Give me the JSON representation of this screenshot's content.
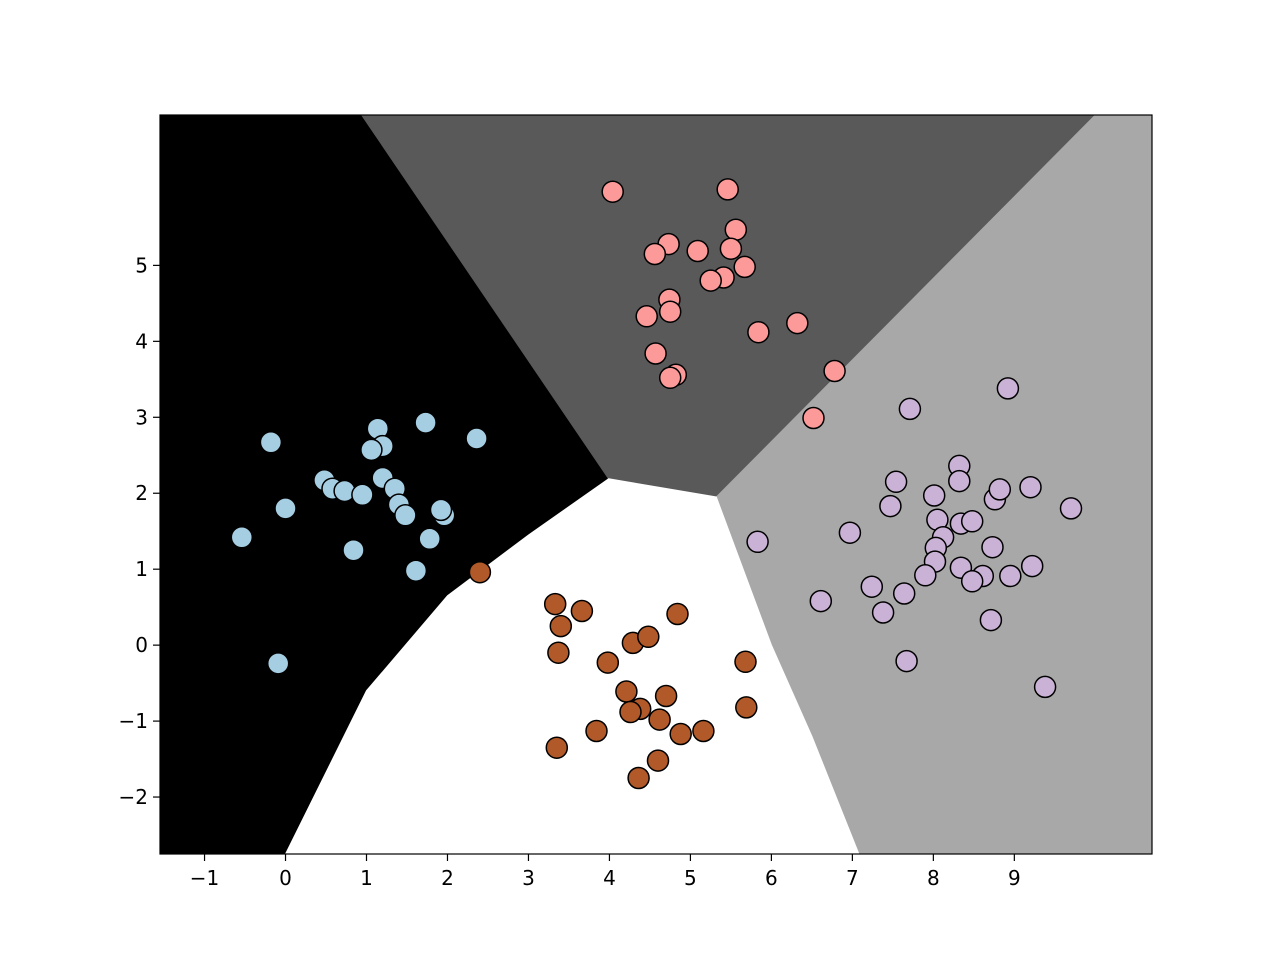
{
  "chart_data": {
    "type": "scatter",
    "title": "",
    "xlabel": "",
    "ylabel": "",
    "xlim": [
      -1.55,
      10.7
    ],
    "ylim": [
      -2.75,
      6.98
    ],
    "x_ticks": [
      -1,
      0,
      1,
      2,
      3,
      4,
      5,
      6,
      7,
      8,
      9
    ],
    "y_ticks": [
      -2,
      -1,
      0,
      1,
      2,
      3,
      4,
      5
    ],
    "x_tick_labels": [
      "−1",
      "0",
      "1",
      "2",
      "3",
      "4",
      "5",
      "6",
      "7",
      "8",
      "9"
    ],
    "y_tick_labels": [
      "−2",
      "−1",
      "0",
      "1",
      "2",
      "3",
      "4",
      "5"
    ],
    "grid": false,
    "legend": "none",
    "regions": [
      {
        "color": "#000000",
        "polygon": [
          [
            -1.55,
            6.98
          ],
          [
            0.94,
            6.98
          ],
          [
            3.99,
            2.19
          ],
          [
            3.0,
            1.45
          ],
          [
            2.0,
            0.65
          ],
          [
            1.0,
            -0.6
          ],
          [
            0.0,
            -2.75
          ],
          [
            -1.55,
            -2.75
          ]
        ]
      },
      {
        "color": "#595959",
        "polygon": [
          [
            0.94,
            6.98
          ],
          [
            10.0,
            6.98
          ],
          [
            5.32,
            1.95
          ],
          [
            3.99,
            2.19
          ]
        ]
      },
      {
        "color": "#a8a8a8",
        "polygon": [
          [
            10.0,
            6.98
          ],
          [
            10.7,
            6.98
          ],
          [
            10.7,
            -2.75
          ],
          [
            7.08,
            -2.75
          ],
          [
            6.5,
            -1.2
          ],
          [
            6.0,
            0.0
          ],
          [
            5.32,
            1.95
          ]
        ]
      },
      {
        "color": "#ffffff",
        "polygon": [
          [
            3.99,
            2.19
          ],
          [
            5.32,
            1.95
          ],
          [
            6.0,
            0.0
          ],
          [
            6.5,
            -1.2
          ],
          [
            7.08,
            -2.75
          ],
          [
            0.0,
            -2.75
          ],
          [
            1.0,
            -0.6
          ],
          [
            2.0,
            0.65
          ],
          [
            3.0,
            1.45
          ]
        ]
      }
    ],
    "series": [
      {
        "color": "#a6cee3",
        "points": [
          [
            -0.18,
            2.67
          ],
          [
            1.14,
            2.85
          ],
          [
            1.73,
            2.93
          ],
          [
            2.36,
            2.72
          ],
          [
            1.2,
            2.62
          ],
          [
            1.06,
            2.57
          ],
          [
            0.48,
            2.17
          ],
          [
            0.58,
            2.06
          ],
          [
            0.73,
            2.03
          ],
          [
            0.95,
            1.98
          ],
          [
            1.2,
            2.2
          ],
          [
            1.35,
            2.06
          ],
          [
            1.4,
            1.85
          ],
          [
            1.48,
            1.71
          ],
          [
            1.96,
            1.71
          ],
          [
            1.92,
            1.78
          ],
          [
            0.0,
            1.8
          ],
          [
            -0.54,
            1.42
          ],
          [
            0.84,
            1.25
          ],
          [
            1.78,
            1.4
          ],
          [
            1.61,
            0.98
          ],
          [
            -0.09,
            -0.24
          ]
        ]
      },
      {
        "color": "#fb9a99",
        "points": [
          [
            4.04,
            5.97
          ],
          [
            5.46,
            6.0
          ],
          [
            5.56,
            5.47
          ],
          [
            4.73,
            5.28
          ],
          [
            5.09,
            5.19
          ],
          [
            4.56,
            5.15
          ],
          [
            5.5,
            5.22
          ],
          [
            5.67,
            4.98
          ],
          [
            5.41,
            4.84
          ],
          [
            5.25,
            4.8
          ],
          [
            4.74,
            4.55
          ],
          [
            4.75,
            4.39
          ],
          [
            4.46,
            4.33
          ],
          [
            5.84,
            4.12
          ],
          [
            6.32,
            4.24
          ],
          [
            4.57,
            3.84
          ],
          [
            4.82,
            3.56
          ],
          [
            4.75,
            3.52
          ],
          [
            6.78,
            3.61
          ],
          [
            6.52,
            2.99
          ]
        ]
      },
      {
        "color": "#cab2d6",
        "points": [
          [
            8.92,
            3.38
          ],
          [
            7.71,
            3.11
          ],
          [
            7.54,
            2.15
          ],
          [
            8.32,
            2.36
          ],
          [
            8.32,
            2.16
          ],
          [
            7.47,
            1.83
          ],
          [
            8.01,
            1.97
          ],
          [
            8.76,
            1.92
          ],
          [
            8.82,
            2.05
          ],
          [
            9.2,
            2.08
          ],
          [
            9.7,
            1.8
          ],
          [
            6.97,
            1.48
          ],
          [
            8.05,
            1.65
          ],
          [
            8.34,
            1.6
          ],
          [
            8.48,
            1.63
          ],
          [
            8.12,
            1.42
          ],
          [
            8.03,
            1.28
          ],
          [
            5.83,
            1.36
          ],
          [
            8.73,
            1.29
          ],
          [
            8.02,
            1.1
          ],
          [
            8.34,
            1.02
          ],
          [
            8.61,
            0.91
          ],
          [
            8.48,
            0.84
          ],
          [
            7.9,
            0.92
          ],
          [
            8.95,
            0.91
          ],
          [
            9.22,
            1.04
          ],
          [
            7.24,
            0.77
          ],
          [
            7.64,
            0.68
          ],
          [
            6.61,
            0.58
          ],
          [
            7.38,
            0.43
          ],
          [
            8.71,
            0.33
          ],
          [
            7.67,
            -0.21
          ],
          [
            9.38,
            -0.55
          ]
        ]
      },
      {
        "color": "#b15928",
        "points": [
          [
            2.4,
            0.96
          ],
          [
            3.33,
            0.54
          ],
          [
            3.66,
            0.45
          ],
          [
            3.4,
            0.25
          ],
          [
            4.84,
            0.41
          ],
          [
            4.29,
            0.03
          ],
          [
            4.48,
            0.11
          ],
          [
            3.37,
            -0.1
          ],
          [
            3.98,
            -0.23
          ],
          [
            5.68,
            -0.22
          ],
          [
            4.21,
            -0.61
          ],
          [
            4.7,
            -0.67
          ],
          [
            4.38,
            -0.84
          ],
          [
            4.26,
            -0.88
          ],
          [
            4.62,
            -0.98
          ],
          [
            5.69,
            -0.82
          ],
          [
            3.84,
            -1.13
          ],
          [
            4.88,
            -1.17
          ],
          [
            5.16,
            -1.13
          ],
          [
            3.35,
            -1.35
          ],
          [
            4.6,
            -1.52
          ],
          [
            4.36,
            -1.75
          ]
        ]
      }
    ]
  }
}
